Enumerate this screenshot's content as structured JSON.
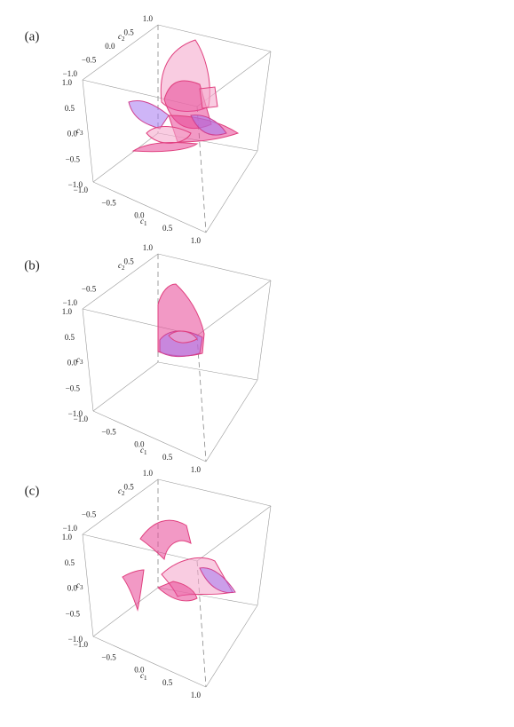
{
  "panels": [
    {
      "label": "(a)",
      "axes": {
        "c2": {
          "name": "c",
          "index": "2",
          "ticks": [
            "1.0",
            "0.5",
            "0.0",
            "−0.5",
            "−1.0"
          ]
        },
        "c3": {
          "name": "c",
          "index": "3",
          "ticks": [
            "1.0",
            "0.5",
            "0.0",
            "−0.5",
            "−1.0"
          ]
        },
        "c1": {
          "name": "c",
          "index": "1",
          "ticks": [
            "−1.0",
            "−0.5",
            "0.0",
            "0.5",
            "1.0"
          ]
        }
      }
    },
    {
      "label": "(b)",
      "axes": {
        "c2": {
          "name": "c",
          "index": "2",
          "ticks": [
            "1.0",
            "0.5",
            "−0.5",
            "−1.0"
          ]
        },
        "c3": {
          "name": "c",
          "index": "3",
          "ticks": [
            "1.0",
            "0.5",
            "0.0",
            "−0.5",
            "−1.0"
          ]
        },
        "c1": {
          "name": "c",
          "index": "1",
          "ticks": [
            "−1.0",
            "−0.5",
            "0.0",
            "0.5",
            "1.0"
          ]
        }
      }
    },
    {
      "label": "(c)",
      "axes": {
        "c2": {
          "name": "c",
          "index": "2",
          "ticks": [
            "1.0",
            "0.5",
            "−0.5",
            "−1.0"
          ]
        },
        "c3": {
          "name": "c",
          "index": "3",
          "ticks": [
            "1.0",
            "0.5",
            "0.0",
            "−0.5",
            "−1.0"
          ]
        },
        "c1": {
          "name": "c",
          "index": "1",
          "ticks": [
            "−1.0",
            "−0.5",
            "0.0",
            "0.5",
            "1.0"
          ]
        }
      }
    }
  ]
}
